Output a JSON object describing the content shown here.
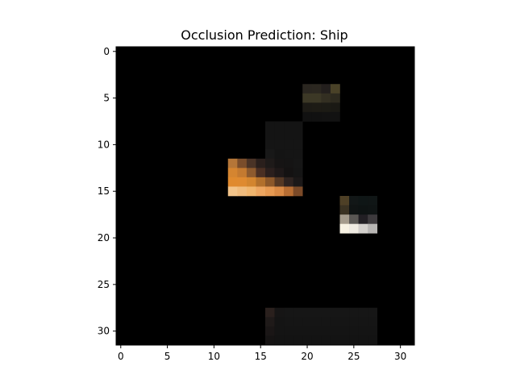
{
  "chart_data": {
    "type": "heatmap",
    "title": "Occlusion Prediction: Ship",
    "xlabel": "",
    "ylabel": "",
    "grid": false,
    "rows": 32,
    "cols": 32,
    "xlim": [
      -0.5,
      31.5
    ],
    "ylim": [
      31.5,
      -0.5
    ],
    "x_ticks": [
      0,
      5,
      10,
      15,
      20,
      25,
      30
    ],
    "y_ticks": [
      0,
      5,
      10,
      15,
      20,
      25,
      30
    ],
    "background_color": "#000000",
    "cells": [
      {
        "x": 20,
        "y": 4,
        "color": "#2a2620"
      },
      {
        "x": 21,
        "y": 4,
        "color": "#2b2720"
      },
      {
        "x": 22,
        "y": 4,
        "color": "#231f1d"
      },
      {
        "x": 23,
        "y": 4,
        "color": "#4a4228"
      },
      {
        "x": 20,
        "y": 5,
        "color": "#3c3826"
      },
      {
        "x": 21,
        "y": 5,
        "color": "#3c3826"
      },
      {
        "x": 22,
        "y": 5,
        "color": "#332f22"
      },
      {
        "x": 23,
        "y": 5,
        "color": "#2d2a1f"
      },
      {
        "x": 20,
        "y": 6,
        "color": "#1c1a15"
      },
      {
        "x": 21,
        "y": 6,
        "color": "#1d1b15"
      },
      {
        "x": 22,
        "y": 6,
        "color": "#1c1b15"
      },
      {
        "x": 23,
        "y": 6,
        "color": "#1a1914"
      },
      {
        "x": 20,
        "y": 7,
        "color": "#111111"
      },
      {
        "x": 21,
        "y": 7,
        "color": "#111111"
      },
      {
        "x": 22,
        "y": 7,
        "color": "#121212"
      },
      {
        "x": 23,
        "y": 7,
        "color": "#121212"
      },
      {
        "x": 16,
        "y": 8,
        "color": "#141414"
      },
      {
        "x": 17,
        "y": 8,
        "color": "#141414"
      },
      {
        "x": 18,
        "y": 8,
        "color": "#141414"
      },
      {
        "x": 19,
        "y": 8,
        "color": "#141414"
      },
      {
        "x": 16,
        "y": 9,
        "color": "#141414"
      },
      {
        "x": 17,
        "y": 9,
        "color": "#141414"
      },
      {
        "x": 18,
        "y": 9,
        "color": "#141414"
      },
      {
        "x": 19,
        "y": 9,
        "color": "#141414"
      },
      {
        "x": 16,
        "y": 10,
        "color": "#151515"
      },
      {
        "x": 17,
        "y": 10,
        "color": "#151515"
      },
      {
        "x": 18,
        "y": 10,
        "color": "#151515"
      },
      {
        "x": 19,
        "y": 10,
        "color": "#151515"
      },
      {
        "x": 16,
        "y": 11,
        "color": "#181818"
      },
      {
        "x": 17,
        "y": 11,
        "color": "#141414"
      },
      {
        "x": 18,
        "y": 11,
        "color": "#151515"
      },
      {
        "x": 19,
        "y": 11,
        "color": "#151515"
      },
      {
        "x": 12,
        "y": 12,
        "color": "#b57638"
      },
      {
        "x": 13,
        "y": 12,
        "color": "#7a4d2b"
      },
      {
        "x": 14,
        "y": 12,
        "color": "#4a3326"
      },
      {
        "x": 15,
        "y": 12,
        "color": "#2a1f1c"
      },
      {
        "x": 16,
        "y": 12,
        "color": "#1e1a19"
      },
      {
        "x": 17,
        "y": 12,
        "color": "#161414"
      },
      {
        "x": 18,
        "y": 12,
        "color": "#151414"
      },
      {
        "x": 19,
        "y": 12,
        "color": "#161616"
      },
      {
        "x": 12,
        "y": 13,
        "color": "#d58530"
      },
      {
        "x": 13,
        "y": 13,
        "color": "#c47a30"
      },
      {
        "x": 14,
        "y": 13,
        "color": "#8d5a2e"
      },
      {
        "x": 15,
        "y": 13,
        "color": "#4a2f23"
      },
      {
        "x": 16,
        "y": 13,
        "color": "#2b1f1d"
      },
      {
        "x": 17,
        "y": 13,
        "color": "#1e1818"
      },
      {
        "x": 18,
        "y": 13,
        "color": "#141212"
      },
      {
        "x": 19,
        "y": 13,
        "color": "#151515"
      },
      {
        "x": 12,
        "y": 14,
        "color": "#e08a2e"
      },
      {
        "x": 13,
        "y": 14,
        "color": "#df8a30"
      },
      {
        "x": 14,
        "y": 14,
        "color": "#d3852f"
      },
      {
        "x": 15,
        "y": 14,
        "color": "#b2702c"
      },
      {
        "x": 16,
        "y": 14,
        "color": "#8c582a"
      },
      {
        "x": 17,
        "y": 14,
        "color": "#553824"
      },
      {
        "x": 18,
        "y": 14,
        "color": "#2e2320"
      },
      {
        "x": 19,
        "y": 14,
        "color": "#1b1818"
      },
      {
        "x": 12,
        "y": 15,
        "color": "#f2c48a"
      },
      {
        "x": 13,
        "y": 15,
        "color": "#efbb7d"
      },
      {
        "x": 14,
        "y": 15,
        "color": "#f0b56e"
      },
      {
        "x": 15,
        "y": 15,
        "color": "#eda660"
      },
      {
        "x": 16,
        "y": 15,
        "color": "#e79a52"
      },
      {
        "x": 17,
        "y": 15,
        "color": "#da8a45"
      },
      {
        "x": 18,
        "y": 15,
        "color": "#b86e33"
      },
      {
        "x": 19,
        "y": 15,
        "color": "#7b4a28"
      },
      {
        "x": 24,
        "y": 16,
        "color": "#4e4026"
      },
      {
        "x": 25,
        "y": 16,
        "color": "#121717"
      },
      {
        "x": 26,
        "y": 16,
        "color": "#0f1616"
      },
      {
        "x": 27,
        "y": 16,
        "color": "#101616"
      },
      {
        "x": 24,
        "y": 17,
        "color": "#3a3222"
      },
      {
        "x": 25,
        "y": 17,
        "color": "#101414"
      },
      {
        "x": 26,
        "y": 17,
        "color": "#0e1313"
      },
      {
        "x": 27,
        "y": 17,
        "color": "#0f1414"
      },
      {
        "x": 24,
        "y": 18,
        "color": "#a49b8c"
      },
      {
        "x": 25,
        "y": 18,
        "color": "#5a5754"
      },
      {
        "x": 26,
        "y": 18,
        "color": "#221f24"
      },
      {
        "x": 27,
        "y": 18,
        "color": "#3d3a3d"
      },
      {
        "x": 24,
        "y": 19,
        "color": "#f7f2e3"
      },
      {
        "x": 25,
        "y": 19,
        "color": "#efebe2"
      },
      {
        "x": 26,
        "y": 19,
        "color": "#d3d0cc"
      },
      {
        "x": 27,
        "y": 19,
        "color": "#b8b6b4"
      },
      {
        "x": 16,
        "y": 28,
        "color": "#2a201d"
      },
      {
        "x": 17,
        "y": 28,
        "color": "#161515"
      },
      {
        "x": 18,
        "y": 28,
        "color": "#161616"
      },
      {
        "x": 19,
        "y": 28,
        "color": "#161616"
      },
      {
        "x": 20,
        "y": 28,
        "color": "#161616"
      },
      {
        "x": 21,
        "y": 28,
        "color": "#161616"
      },
      {
        "x": 22,
        "y": 28,
        "color": "#161616"
      },
      {
        "x": 23,
        "y": 28,
        "color": "#161616"
      },
      {
        "x": 24,
        "y": 28,
        "color": "#161616"
      },
      {
        "x": 25,
        "y": 28,
        "color": "#161616"
      },
      {
        "x": 26,
        "y": 28,
        "color": "#161616"
      },
      {
        "x": 27,
        "y": 28,
        "color": "#161616"
      },
      {
        "x": 16,
        "y": 29,
        "color": "#1f1a19"
      },
      {
        "x": 17,
        "y": 29,
        "color": "#141414"
      },
      {
        "x": 18,
        "y": 29,
        "color": "#151515"
      },
      {
        "x": 19,
        "y": 29,
        "color": "#151515"
      },
      {
        "x": 20,
        "y": 29,
        "color": "#151515"
      },
      {
        "x": 21,
        "y": 29,
        "color": "#151515"
      },
      {
        "x": 22,
        "y": 29,
        "color": "#151515"
      },
      {
        "x": 23,
        "y": 29,
        "color": "#151515"
      },
      {
        "x": 24,
        "y": 29,
        "color": "#151515"
      },
      {
        "x": 25,
        "y": 29,
        "color": "#151515"
      },
      {
        "x": 26,
        "y": 29,
        "color": "#151515"
      },
      {
        "x": 27,
        "y": 29,
        "color": "#151515"
      },
      {
        "x": 16,
        "y": 30,
        "color": "#1a1616"
      },
      {
        "x": 17,
        "y": 30,
        "color": "#141414"
      },
      {
        "x": 18,
        "y": 30,
        "color": "#141414"
      },
      {
        "x": 19,
        "y": 30,
        "color": "#141414"
      },
      {
        "x": 20,
        "y": 30,
        "color": "#141414"
      },
      {
        "x": 21,
        "y": 30,
        "color": "#141414"
      },
      {
        "x": 22,
        "y": 30,
        "color": "#141414"
      },
      {
        "x": 23,
        "y": 30,
        "color": "#141414"
      },
      {
        "x": 24,
        "y": 30,
        "color": "#141414"
      },
      {
        "x": 25,
        "y": 30,
        "color": "#141414"
      },
      {
        "x": 26,
        "y": 30,
        "color": "#141414"
      },
      {
        "x": 27,
        "y": 30,
        "color": "#141414"
      },
      {
        "x": 16,
        "y": 31,
        "color": "#151313"
      },
      {
        "x": 17,
        "y": 31,
        "color": "#131313"
      },
      {
        "x": 18,
        "y": 31,
        "color": "#131313"
      },
      {
        "x": 19,
        "y": 31,
        "color": "#131313"
      },
      {
        "x": 20,
        "y": 31,
        "color": "#131313"
      },
      {
        "x": 21,
        "y": 31,
        "color": "#131313"
      },
      {
        "x": 22,
        "y": 31,
        "color": "#131313"
      },
      {
        "x": 23,
        "y": 31,
        "color": "#131313"
      },
      {
        "x": 24,
        "y": 31,
        "color": "#131313"
      },
      {
        "x": 25,
        "y": 31,
        "color": "#131313"
      },
      {
        "x": 26,
        "y": 31,
        "color": "#131313"
      },
      {
        "x": 27,
        "y": 31,
        "color": "#131313"
      }
    ]
  }
}
